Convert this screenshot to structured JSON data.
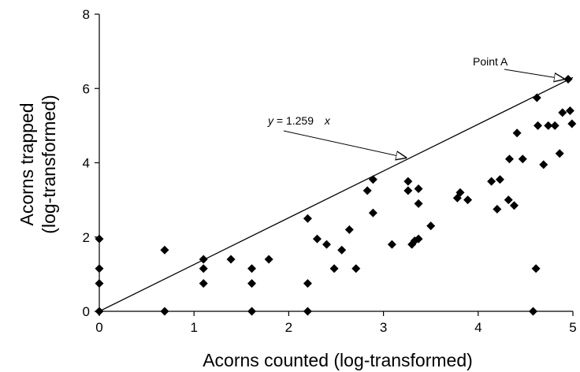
{
  "chart_data": {
    "type": "scatter",
    "title": "",
    "xlabel": "Acorns counted (log-transformed)",
    "ylabel_lines": [
      "Acorns trapped",
      "(log-transformed)"
    ],
    "xlim": [
      0,
      5
    ],
    "ylim": [
      0,
      8
    ],
    "xticks": [
      0,
      1,
      2,
      3,
      4,
      5
    ],
    "yticks": [
      0,
      2,
      4,
      6,
      8
    ],
    "grid": false,
    "marker": "diamond",
    "marker_color": "#000000",
    "fit_line": {
      "slope": 1.259,
      "x_range": [
        0,
        5
      ]
    },
    "equation": {
      "var_y": "y",
      "middle": " = 1.259 ",
      "var_x": "x"
    },
    "point_label": {
      "text": "Point A",
      "x": 4.95,
      "y": 6.25
    },
    "points": [
      {
        "x": 0,
        "y": 0
      },
      {
        "x": 0,
        "y": 0.75
      },
      {
        "x": 0,
        "y": 1.15
      },
      {
        "x": 0,
        "y": 1.95
      },
      {
        "x": 0.69,
        "y": 0
      },
      {
        "x": 0.69,
        "y": 1.65
      },
      {
        "x": 1.1,
        "y": 0.75
      },
      {
        "x": 1.1,
        "y": 1.15
      },
      {
        "x": 1.1,
        "y": 1.4
      },
      {
        "x": 1.39,
        "y": 1.4
      },
      {
        "x": 1.61,
        "y": 0
      },
      {
        "x": 1.61,
        "y": 0.75
      },
      {
        "x": 1.61,
        "y": 1.15
      },
      {
        "x": 1.79,
        "y": 1.4
      },
      {
        "x": 2.2,
        "y": 0
      },
      {
        "x": 2.2,
        "y": 0.75
      },
      {
        "x": 2.2,
        "y": 2.5
      },
      {
        "x": 2.3,
        "y": 1.95
      },
      {
        "x": 2.4,
        "y": 1.8
      },
      {
        "x": 2.48,
        "y": 1.15
      },
      {
        "x": 2.56,
        "y": 1.65
      },
      {
        "x": 2.64,
        "y": 2.2
      },
      {
        "x": 2.71,
        "y": 1.15
      },
      {
        "x": 2.83,
        "y": 3.25
      },
      {
        "x": 2.89,
        "y": 3.55
      },
      {
        "x": 2.89,
        "y": 2.65
      },
      {
        "x": 3.09,
        "y": 1.8
      },
      {
        "x": 3.26,
        "y": 3.5
      },
      {
        "x": 3.26,
        "y": 3.25
      },
      {
        "x": 3.3,
        "y": 1.8
      },
      {
        "x": 3.33,
        "y": 1.9
      },
      {
        "x": 3.37,
        "y": 3.3
      },
      {
        "x": 3.37,
        "y": 2.9
      },
      {
        "x": 3.37,
        "y": 1.95
      },
      {
        "x": 3.5,
        "y": 2.3
      },
      {
        "x": 3.78,
        "y": 3.05
      },
      {
        "x": 3.81,
        "y": 3.2
      },
      {
        "x": 3.89,
        "y": 3.0
      },
      {
        "x": 4.14,
        "y": 3.5
      },
      {
        "x": 4.2,
        "y": 2.75
      },
      {
        "x": 4.23,
        "y": 3.55
      },
      {
        "x": 4.32,
        "y": 3.0
      },
      {
        "x": 4.33,
        "y": 4.1
      },
      {
        "x": 4.38,
        "y": 2.85
      },
      {
        "x": 4.41,
        "y": 4.8
      },
      {
        "x": 4.47,
        "y": 4.1
      },
      {
        "x": 4.58,
        "y": 0
      },
      {
        "x": 4.61,
        "y": 1.15
      },
      {
        "x": 4.62,
        "y": 5.75
      },
      {
        "x": 4.63,
        "y": 5.0
      },
      {
        "x": 4.69,
        "y": 3.95
      },
      {
        "x": 4.74,
        "y": 5.0
      },
      {
        "x": 4.81,
        "y": 5.0
      },
      {
        "x": 4.86,
        "y": 4.25
      },
      {
        "x": 4.89,
        "y": 5.35
      },
      {
        "x": 4.95,
        "y": 6.25
      },
      {
        "x": 4.97,
        "y": 5.4
      },
      {
        "x": 4.99,
        "y": 5.05
      }
    ]
  }
}
